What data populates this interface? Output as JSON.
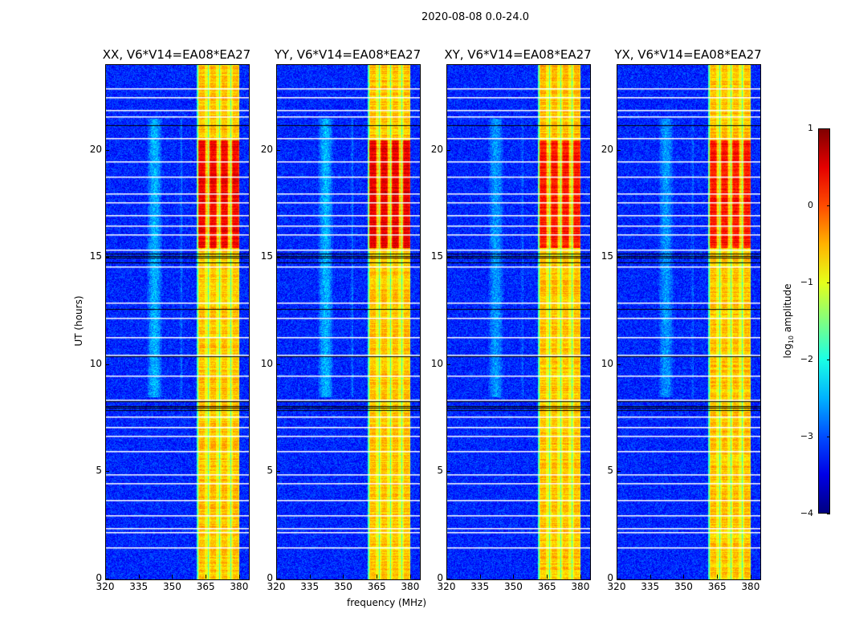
{
  "chart_data": {
    "type": "heatmap",
    "title": "2020-08-08 0.0-24.0",
    "xlabel": "frequency (MHz)",
    "ylabel": "UT (hours)",
    "xlim": [
      320,
      384
    ],
    "ylim": [
      0,
      24
    ],
    "xticks": [
      "320",
      "335",
      "350",
      "365",
      "380"
    ],
    "xtick_values": [
      320,
      335,
      350,
      365,
      380
    ],
    "yticks": [
      "0",
      "5",
      "10",
      "15",
      "20"
    ],
    "ytick_values": [
      0,
      5,
      10,
      15,
      20
    ],
    "panels": [
      {
        "title": "XX, V6*V14=EA08*EA27",
        "peak_log10": 0.4
      },
      {
        "title": "YY, V6*V14=EA08*EA27",
        "peak_log10": 0.5
      },
      {
        "title": "XY, V6*V14=EA08*EA27",
        "peak_log10": 0.2
      },
      {
        "title": "YX, V6*V14=EA08*EA27",
        "peak_log10": 0.2
      }
    ],
    "background_log10": -3.2,
    "rfi_band_mhz": [
      360.5,
      379.5
    ],
    "rfi_band_log10": -0.9,
    "rfi_strong_hours": [
      15.5,
      20.5
    ],
    "diffuse_emission": {
      "freq_mhz": [
        338,
        354
      ],
      "hours": [
        8.5,
        21.5
      ],
      "log10": -2.2
    },
    "flagged_white_hours": [
      1.5,
      2.2,
      2.4,
      3.0,
      3.7,
      4.5,
      4.9,
      6.0,
      6.7,
      7.1,
      7.6,
      8.4,
      9.5,
      10.5,
      11.3,
      12.2,
      12.9,
      14.6,
      15.4,
      16.1,
      16.5,
      17.0,
      17.6,
      18.0,
      18.8,
      19.5,
      20.6,
      21.6,
      21.9,
      22.5,
      22.9
    ],
    "flagged_black_hours": [
      7.9,
      8.0,
      8.1,
      8.3,
      10.4,
      12.6,
      14.8,
      15.0,
      15.1,
      15.2,
      21.2
    ],
    "colorbar": {
      "label_prefix": "log",
      "label_sub": "10",
      "label_suffix": " amplitude",
      "range": [
        -4,
        1
      ],
      "ticks": [
        "−4",
        "−3",
        "−2",
        "−1",
        "0",
        "1"
      ],
      "tick_values": [
        -4,
        -3,
        -2,
        -1,
        0,
        1
      ],
      "colormap": "jet"
    }
  }
}
